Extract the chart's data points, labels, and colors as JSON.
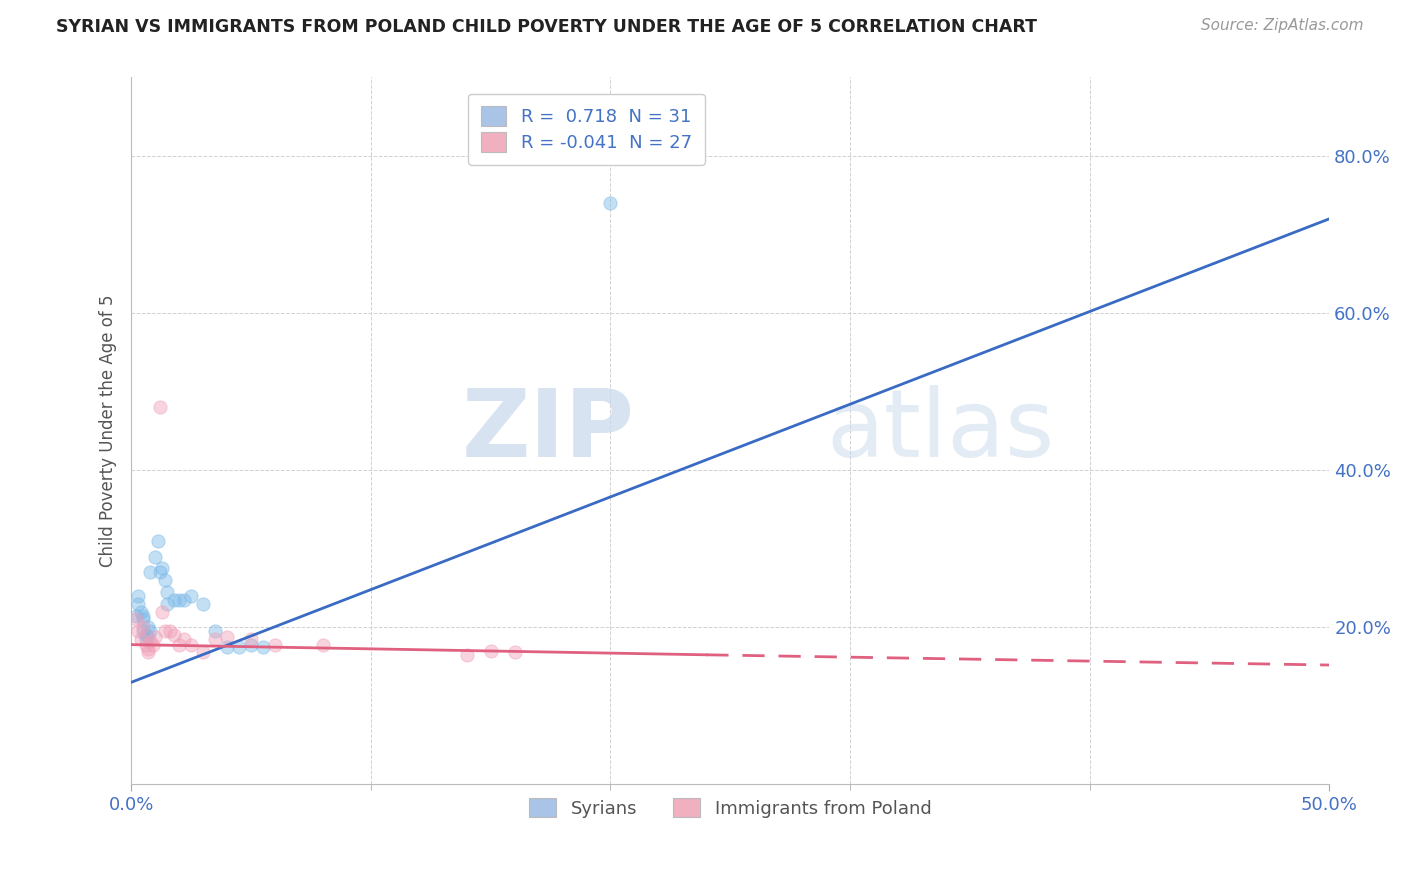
{
  "title": "SYRIAN VS IMMIGRANTS FROM POLAND CHILD POVERTY UNDER THE AGE OF 5 CORRELATION CHART",
  "source": "Source: ZipAtlas.com",
  "ylabel": "Child Poverty Under the Age of 5",
  "xlim": [
    0.0,
    0.5
  ],
  "ylim": [
    0.0,
    0.9
  ],
  "xtick_positions": [
    0.0,
    0.5
  ],
  "xtick_labels": [
    "0.0%",
    "50.0%"
  ],
  "ytick_positions": [
    0.2,
    0.4,
    0.6,
    0.8
  ],
  "ytick_labels": [
    "20.0%",
    "40.0%",
    "60.0%",
    "80.0%"
  ],
  "legend_entries": [
    {
      "label_r": "R = ",
      "label_val": " 0.718",
      "label_n": "  N = ",
      "label_nval": "31",
      "color": "#aac4e8"
    },
    {
      "label_r": "R = ",
      "label_val": "-0.041",
      "label_n": "  N = ",
      "label_nval": "27",
      "color": "#f0b0c0"
    }
  ],
  "legend_bottom": [
    {
      "label": "Syrians",
      "color": "#aac4e8"
    },
    {
      "label": "Immigrants from Poland",
      "color": "#f0b0c0"
    }
  ],
  "blue_dots": [
    [
      0.002,
      0.215
    ],
    [
      0.003,
      0.23
    ],
    [
      0.003,
      0.24
    ],
    [
      0.004,
      0.22
    ],
    [
      0.005,
      0.21
    ],
    [
      0.005,
      0.215
    ],
    [
      0.005,
      0.195
    ],
    [
      0.006,
      0.19
    ],
    [
      0.006,
      0.185
    ],
    [
      0.007,
      0.188
    ],
    [
      0.007,
      0.2
    ],
    [
      0.008,
      0.195
    ],
    [
      0.008,
      0.27
    ],
    [
      0.01,
      0.29
    ],
    [
      0.011,
      0.31
    ],
    [
      0.012,
      0.27
    ],
    [
      0.013,
      0.275
    ],
    [
      0.014,
      0.26
    ],
    [
      0.015,
      0.245
    ],
    [
      0.015,
      0.23
    ],
    [
      0.018,
      0.235
    ],
    [
      0.02,
      0.235
    ],
    [
      0.022,
      0.235
    ],
    [
      0.025,
      0.24
    ],
    [
      0.03,
      0.23
    ],
    [
      0.035,
      0.195
    ],
    [
      0.04,
      0.175
    ],
    [
      0.045,
      0.175
    ],
    [
      0.05,
      0.178
    ],
    [
      0.055,
      0.175
    ],
    [
      0.2,
      0.74
    ]
  ],
  "pink_dots": [
    [
      0.002,
      0.21
    ],
    [
      0.003,
      0.195
    ],
    [
      0.004,
      0.185
    ],
    [
      0.005,
      0.2
    ],
    [
      0.006,
      0.178
    ],
    [
      0.007,
      0.172
    ],
    [
      0.007,
      0.168
    ],
    [
      0.008,
      0.182
    ],
    [
      0.009,
      0.178
    ],
    [
      0.01,
      0.188
    ],
    [
      0.012,
      0.48
    ],
    [
      0.013,
      0.22
    ],
    [
      0.014,
      0.195
    ],
    [
      0.016,
      0.195
    ],
    [
      0.018,
      0.19
    ],
    [
      0.02,
      0.178
    ],
    [
      0.022,
      0.185
    ],
    [
      0.025,
      0.178
    ],
    [
      0.03,
      0.168
    ],
    [
      0.035,
      0.185
    ],
    [
      0.04,
      0.188
    ],
    [
      0.05,
      0.185
    ],
    [
      0.06,
      0.178
    ],
    [
      0.08,
      0.178
    ],
    [
      0.14,
      0.165
    ],
    [
      0.15,
      0.17
    ],
    [
      0.16,
      0.168
    ]
  ],
  "blue_line": [
    [
      0.0,
      0.13
    ],
    [
      0.5,
      0.72
    ]
  ],
  "pink_line_solid": [
    [
      0.0,
      0.178
    ],
    [
      0.24,
      0.165
    ]
  ],
  "pink_line_dashed": [
    [
      0.24,
      0.165
    ],
    [
      0.5,
      0.152
    ]
  ],
  "background_color": "#ffffff",
  "grid_color": "#cccccc",
  "watermark_zip": "ZIP",
  "watermark_atlas": "atlas",
  "dot_size": 90,
  "dot_alpha": 0.45,
  "blue_color": "#7bb8e8",
  "pink_color": "#f0a0b8",
  "blue_line_color": "#3a6bc4",
  "pink_line_color": "#e06080"
}
